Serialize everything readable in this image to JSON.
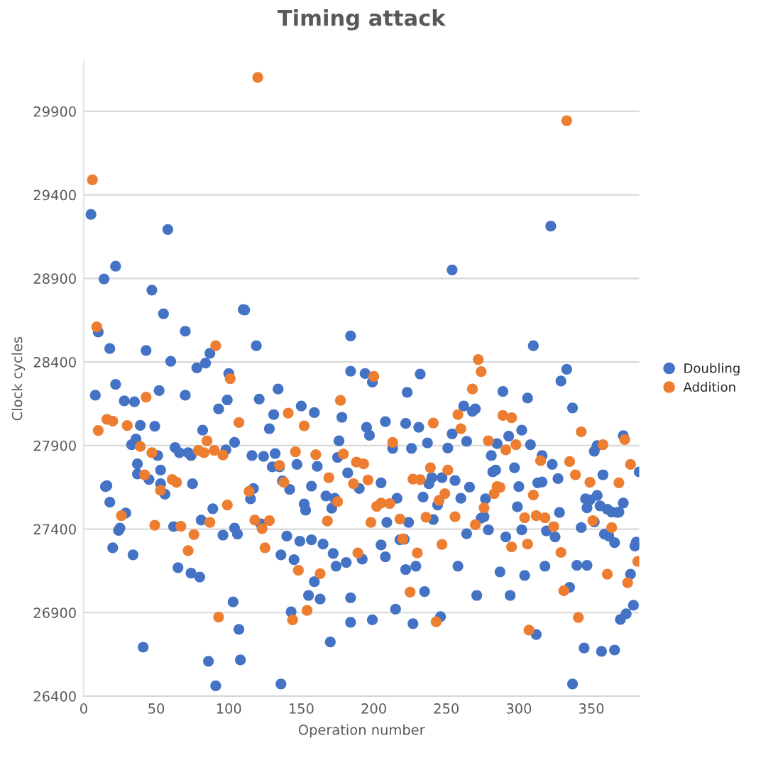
{
  "chart_data": {
    "type": "scatter",
    "title": "Timing attack",
    "xlabel": "Operation number",
    "ylabel": "Clock cycles",
    "xlim": [
      0,
      383
    ],
    "xticks": [
      0,
      50,
      100,
      150,
      200,
      250,
      300,
      350
    ],
    "ylim": [
      26400,
      30200
    ],
    "yticks": [
      26400,
      26900,
      27400,
      27900,
      28400,
      28900,
      29400,
      29900
    ],
    "grid": "y",
    "legend": "right",
    "marker": "circle",
    "series": [
      {
        "name": "Doubling",
        "color": "#4472c4",
        "x": [
          5,
          8,
          10,
          14,
          18,
          22,
          22,
          15,
          16,
          18,
          20,
          24,
          25,
          29,
          28,
          34,
          35,
          33,
          36,
          39,
          37,
          37,
          45,
          43,
          47,
          49,
          52,
          51,
          53,
          53,
          56,
          55,
          58,
          60,
          63,
          62,
          66,
          65,
          70,
          70,
          72,
          74,
          74,
          75,
          78,
          80,
          81,
          82,
          84,
          87,
          89,
          93,
          98,
          99,
          100,
          96,
          91,
          86,
          103,
          41,
          107,
          104,
          104,
          106,
          110,
          108,
          111,
          119,
          121,
          134,
          131,
          128,
          116,
          124,
          132,
          130,
          135,
          137,
          142,
          117,
          115,
          122,
          140,
          136,
          145,
          149,
          157,
          165,
          159,
          155,
          163,
          150,
          159,
          147,
          152,
          153,
          157,
          161,
          167,
          171,
          173,
          176,
          178,
          175,
          182,
          190,
          172,
          174,
          181,
          192,
          184,
          184,
          199,
          170,
          143,
          184,
          184,
          194,
          199,
          195,
          197,
          208,
          213,
          205,
          209,
          216,
          205,
          208,
          215,
          218,
          221,
          223,
          222,
          226,
          224,
          222,
          229,
          227,
          231,
          232,
          237,
          234,
          235,
          238,
          240,
          241,
          244,
          247,
          246,
          136,
          254,
          322,
          310,
          333,
          329,
          337,
          289,
          306,
          262,
          270,
          268,
          254,
          264,
          251,
          281,
          285,
          293,
          302,
          308,
          297,
          282,
          284,
          256,
          260,
          266,
          300,
          299,
          277,
          276,
          274,
          279,
          264,
          291,
          302,
          313,
          316,
          316,
          323,
          327,
          328,
          319,
          325,
          343,
          346,
          347,
          349,
          354,
          352,
          352,
          354,
          358,
          356,
          361,
          364,
          368,
          369,
          372,
          372,
          366,
          359,
          362,
          380,
          381,
          383,
          258,
          287,
          304,
          318,
          340,
          347,
          377,
          271,
          294,
          335,
          379,
          374,
          370,
          312,
          345,
          357,
          366,
          337
        ],
        "values": [
          29283,
          28201,
          28579,
          28897,
          28480,
          28973,
          28266,
          27654,
          27660,
          27561,
          27288,
          27392,
          27406,
          27496,
          28167,
          27246,
          28162,
          27905,
          27939,
          28021,
          27790,
          27730,
          27697,
          28469,
          28830,
          28015,
          28229,
          27840,
          27753,
          27671,
          27609,
          28689,
          29193,
          28404,
          27888,
          27415,
          27857,
          27169,
          28201,
          28584,
          27857,
          27840,
          27136,
          27671,
          28365,
          27113,
          27454,
          27992,
          28393,
          28452,
          27522,
          28119,
          27874,
          28173,
          28331,
          27364,
          26462,
          26609,
          26964,
          26693,
          26800,
          27919,
          27406,
          27370,
          28714,
          26617,
          28711,
          28497,
          28178,
          28238,
          28085,
          28001,
          27840,
          27835,
          27852,
          27772,
          27772,
          27688,
          27637,
          27643,
          27581,
          27432,
          27358,
          27246,
          27217,
          27327,
          27336,
          27310,
          27085,
          27003,
          26981,
          28136,
          28097,
          27787,
          27550,
          27513,
          27657,
          27775,
          27598,
          27525,
          27584,
          27928,
          28069,
          27829,
          27736,
          27643,
          27254,
          27178,
          27200,
          27220,
          26989,
          26842,
          26857,
          26724,
          26905,
          28556,
          28345,
          28331,
          28280,
          28009,
          27961,
          28043,
          27883,
          27677,
          27440,
          27584,
          27305,
          27234,
          26921,
          27336,
          27339,
          28218,
          28032,
          27883,
          27440,
          27158,
          27178,
          26834,
          28009,
          28328,
          27916,
          27592,
          27026,
          27671,
          27708,
          27457,
          27544,
          27708,
          26876,
          26473,
          28951,
          29213,
          28497,
          28356,
          28286,
          28125,
          28224,
          28184,
          28136,
          28119,
          28105,
          27970,
          27925,
          27885,
          27840,
          27911,
          27956,
          27992,
          27905,
          27767,
          27742,
          27753,
          27691,
          27584,
          27651,
          27654,
          27533,
          27581,
          27474,
          27465,
          27395,
          27372,
          27353,
          27395,
          27677,
          27682,
          27840,
          27787,
          27702,
          27499,
          27389,
          27353,
          27409,
          27581,
          27527,
          27575,
          27601,
          27443,
          27866,
          27900,
          27725,
          27539,
          27519,
          27502,
          27499,
          27502,
          27556,
          27959,
          27319,
          27370,
          27358,
          27299,
          27322,
          27742,
          27178,
          27144,
          27122,
          27178,
          27183,
          27183,
          27130,
          27003,
          27003,
          27051,
          26944,
          26893,
          26859,
          26769,
          26688,
          26668,
          26676,
          26473
        ]
      },
      {
        "name": "Addition",
        "color": "#ed7d31",
        "x": [
          6,
          9,
          10,
          16,
          20,
          30,
          43,
          39,
          47,
          42,
          53,
          61,
          64,
          49,
          67,
          26,
          76,
          72,
          79,
          83,
          85,
          90,
          91,
          96,
          101,
          99,
          87,
          93,
          107,
          120,
          141,
          152,
          146,
          135,
          138,
          114,
          118,
          123,
          128,
          125,
          148,
          163,
          154,
          144,
          160,
          169,
          177,
          179,
          175,
          168,
          186,
          188,
          193,
          196,
          200,
          198,
          189,
          202,
          205,
          211,
          213,
          218,
          220,
          225,
          227,
          232,
          230,
          241,
          239,
          236,
          243,
          247,
          245,
          249,
          333,
          272,
          274,
          268,
          258,
          260,
          251,
          256,
          270,
          276,
          279,
          283,
          285,
          287,
          289,
          295,
          291,
          298,
          295,
          304,
          306,
          310,
          312,
          315,
          318,
          324,
          329,
          331,
          335,
          339,
          341,
          343,
          349,
          351,
          358,
          364,
          361,
          369,
          373,
          377,
          375,
          382,
          307
        ],
        "values": [
          29490,
          28610,
          27990,
          28057,
          28046,
          28020,
          28190,
          27894,
          27857,
          27725,
          27632,
          27697,
          27680,
          27423,
          27417,
          27480,
          27367,
          27271,
          27871,
          27857,
          27928,
          27871,
          28497,
          27843,
          28300,
          27544,
          27440,
          26873,
          28038,
          30103,
          28094,
          28018,
          27863,
          27781,
          27680,
          27626,
          27454,
          27403,
          27451,
          27288,
          27153,
          27133,
          26913,
          26857,
          27846,
          27708,
          28170,
          27849,
          27564,
          27448,
          27671,
          27801,
          27790,
          27694,
          28314,
          27440,
          27257,
          27536,
          27556,
          27553,
          27919,
          27460,
          27341,
          27023,
          27699,
          27696,
          27257,
          28035,
          27767,
          27471,
          26845,
          27308,
          27572,
          27612,
          29844,
          28415,
          28342,
          28238,
          28085,
          28001,
          27753,
          27474,
          27426,
          27527,
          27928,
          27612,
          27654,
          27649,
          28080,
          28066,
          27874,
          27905,
          27293,
          27468,
          27310,
          27604,
          27480,
          27809,
          27468,
          27415,
          27260,
          27031,
          27804,
          27725,
          26871,
          27982,
          27680,
          27451,
          27905,
          27409,
          27130,
          27677,
          27936,
          27787,
          27079,
          27206,
          26795
        ]
      }
    ]
  }
}
